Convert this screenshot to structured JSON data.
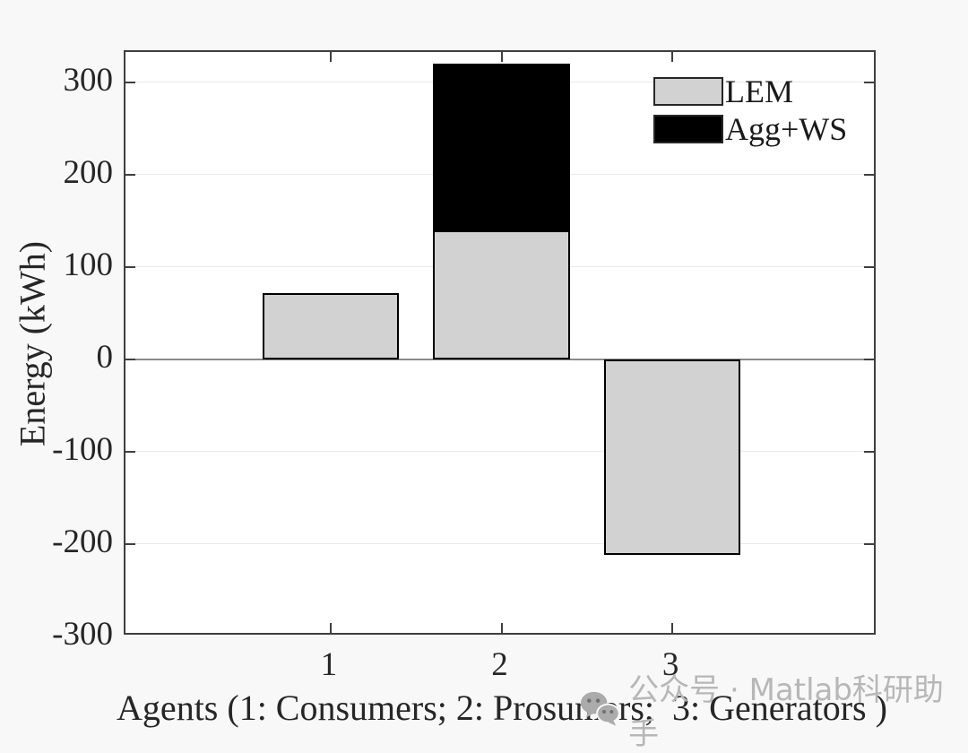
{
  "chart_data": {
    "type": "bar",
    "stacked": true,
    "categories": [
      "1",
      "2",
      "3"
    ],
    "series": [
      {
        "name": "LEM",
        "color": "#d2d2d2",
        "values": [
          72,
          140,
          -212
        ]
      },
      {
        "name": "Agg+WS",
        "color": "#000000",
        "values": [
          0,
          180,
          0
        ]
      }
    ],
    "title": "",
    "xlabel": "Agents (1: Consumers; 2: Prosumers;  3: Generators )",
    "ylabel": "Energy (kWh)",
    "ylim": [
      -300,
      333
    ],
    "xlim": [
      -0.2,
      4.2
    ],
    "yticks": [
      -300,
      -200,
      -100,
      0,
      100,
      200,
      300
    ],
    "xticks": [
      1,
      2,
      3
    ],
    "bar_width": 0.8,
    "grid": "horizontal-on",
    "legend_position": "northeast",
    "plot_bg": "#ffffff",
    "figure_bg": "#f8f8f8",
    "axis_color": "#3f3f3f",
    "grid_color": "#e9e9e9",
    "zero_line_color": "#8a8a8a"
  },
  "legend": {
    "items": [
      {
        "label": "LEM",
        "color": "#d2d2d2"
      },
      {
        "label": "Agg+WS",
        "color": "#000000"
      }
    ]
  },
  "watermark": {
    "icon": "wechat-icon",
    "text": "公众号 · Matlab科研助手",
    "color": "#b7b7b7"
  }
}
